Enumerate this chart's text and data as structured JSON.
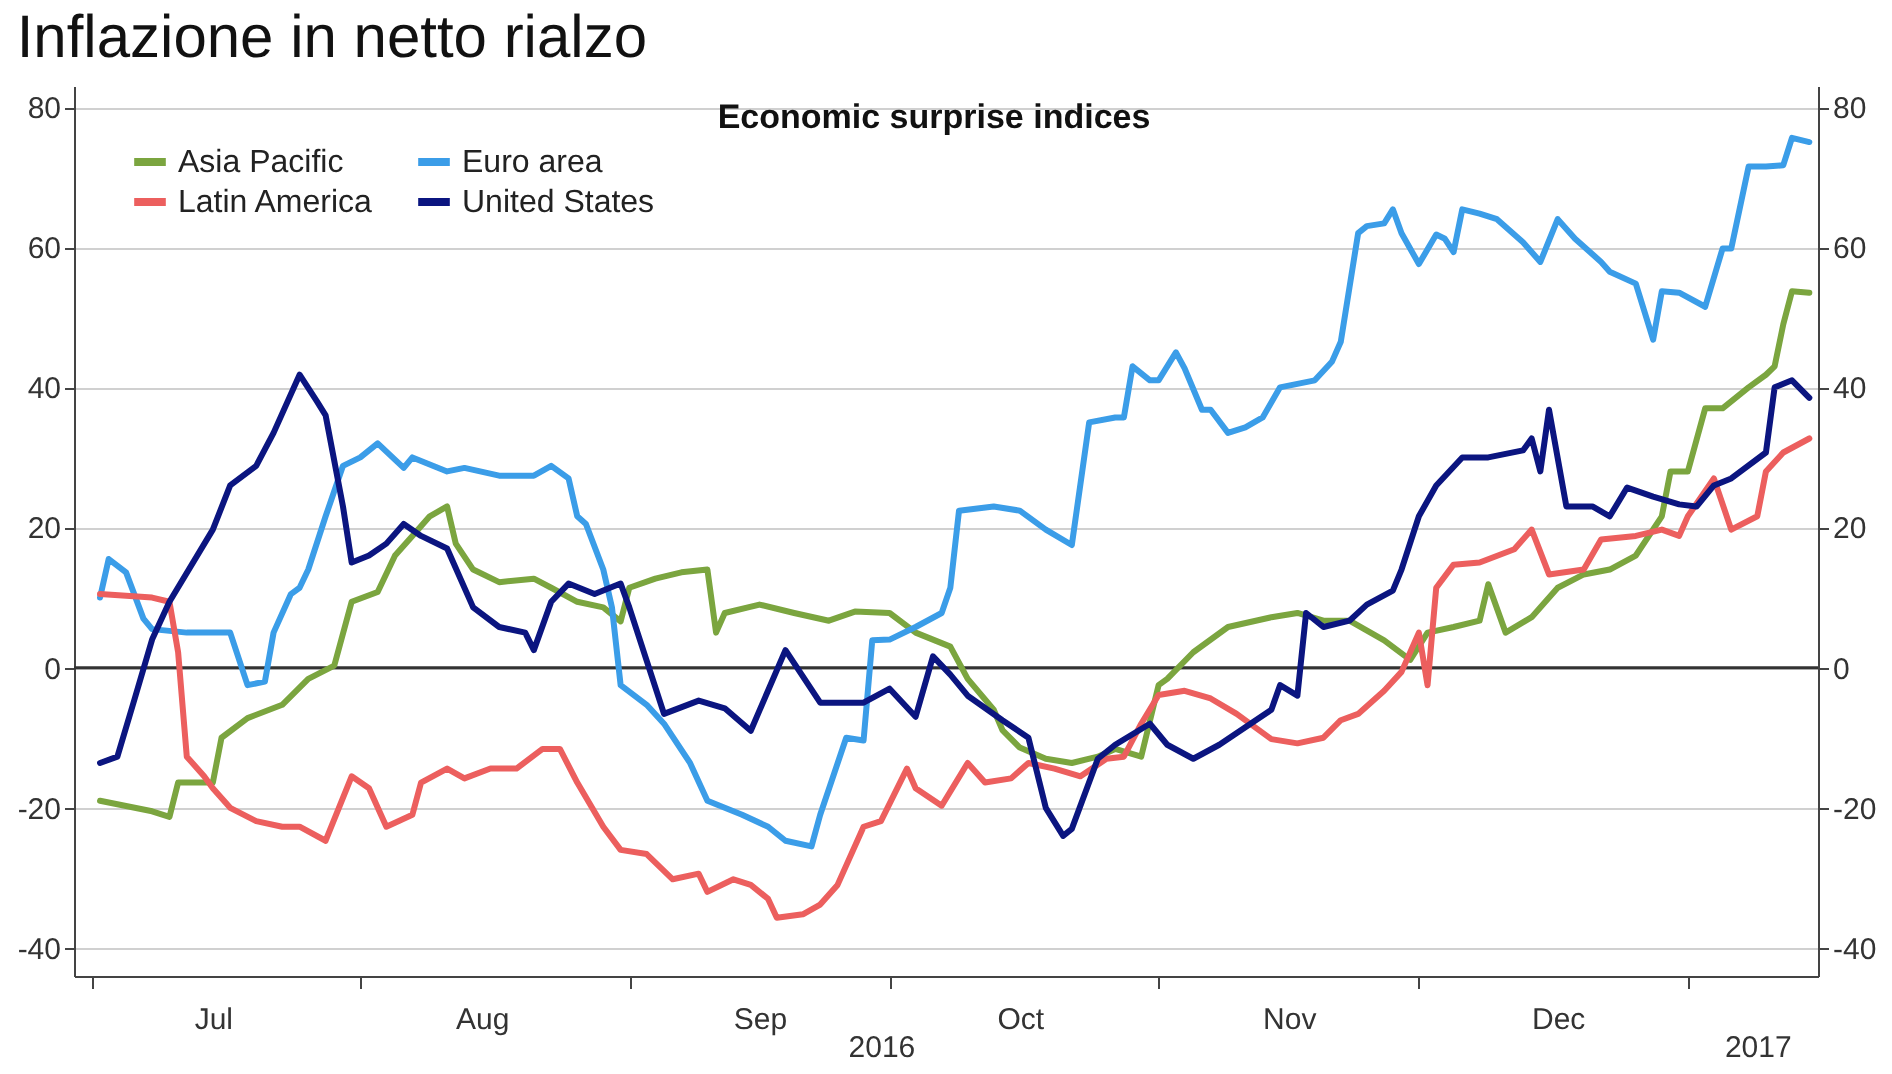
{
  "chart_data": {
    "type": "line",
    "title": "Inflazione in netto rialzo",
    "subtitle": "Economic surprise indices",
    "xlim": [
      "2016-06-29",
      "2017-01-16"
    ],
    "xticks": [
      {
        "value": "2016-07-01",
        "label": null
      },
      {
        "value": "2016-08-01",
        "label": null
      },
      {
        "value": "2016-09-01",
        "label": null
      },
      {
        "value": "2016-10-01",
        "label": null
      },
      {
        "value": "2016-11-01",
        "label": null
      },
      {
        "value": "2016-12-01",
        "label": null
      },
      {
        "value": "2017-01-01",
        "label": null
      },
      {
        "value": "2016-07-15",
        "label": "Jul"
      },
      {
        "value": "2016-08-15",
        "label": "Aug"
      },
      {
        "value": "2016-09-16",
        "label": "Sep"
      },
      {
        "value": "2016-10-16",
        "label": "Oct"
      },
      {
        "value": "2016-11-16",
        "label": "Nov"
      },
      {
        "value": "2016-12-17",
        "label": "Dec"
      }
    ],
    "x2lim": [
      "2016-06-29",
      "2017-01-16"
    ],
    "x2ticks": [
      {
        "value": "2016-09-30",
        "label": "2016"
      },
      {
        "value": "2017-01-09",
        "label": "2017"
      }
    ],
    "ylim": [
      -44,
      83
    ],
    "yticks": [
      -40,
      -20,
      0,
      20,
      40,
      60,
      80
    ],
    "y2lim": [
      -44,
      83
    ],
    "y2ticks": [
      -40,
      -20,
      0,
      20,
      40,
      60,
      80
    ],
    "grid": "y",
    "legend": "top left",
    "line_style": "solid",
    "marker": "none",
    "ref_lines": [
      {
        "axis": "y",
        "value": 0,
        "color": "#333333"
      }
    ],
    "series": [
      {
        "name": "Asia Pacific",
        "color": "#7ba53f",
        "x": [
          "2016-07-02",
          "2016-07-08",
          "2016-07-10",
          "2016-07-11",
          "2016-07-15",
          "2016-07-16",
          "2016-07-19",
          "2016-07-23",
          "2016-07-26",
          "2016-07-29",
          "2016-07-31",
          "2016-08-03",
          "2016-08-05",
          "2016-08-07",
          "2016-08-09",
          "2016-08-11",
          "2016-08-12",
          "2016-08-14",
          "2016-08-17",
          "2016-08-21",
          "2016-08-23",
          "2016-08-26",
          "2016-08-29",
          "2016-08-31",
          "2016-09-01",
          "2016-09-04",
          "2016-09-07",
          "2016-09-10",
          "2016-09-11",
          "2016-09-12",
          "2016-09-16",
          "2016-09-20",
          "2016-09-24",
          "2016-09-27",
          "2016-10-01",
          "2016-10-04",
          "2016-10-08",
          "2016-10-10",
          "2016-10-13",
          "2016-10-14",
          "2016-10-16",
          "2016-10-19",
          "2016-10-22",
          "2016-10-25",
          "2016-10-27",
          "2016-10-30",
          "2016-11-01",
          "2016-11-02",
          "2016-11-05",
          "2016-11-09",
          "2016-11-14",
          "2016-11-17",
          "2016-11-20",
          "2016-11-23",
          "2016-11-27",
          "2016-11-30",
          "2016-12-02",
          "2016-12-05",
          "2016-12-08",
          "2016-12-09",
          "2016-12-11",
          "2016-12-14",
          "2016-12-17",
          "2016-12-20",
          "2016-12-23",
          "2016-12-26",
          "2016-12-29",
          "2016-12-30",
          "2017-01-01",
          "2017-01-03",
          "2017-01-05",
          "2017-01-08",
          "2017-01-10",
          "2017-01-11",
          "2017-01-12",
          "2017-01-13",
          "2017-01-15"
        ],
        "values": [
          -19,
          -20.5,
          -21.3,
          -16.4,
          -16.4,
          -10,
          -7.2,
          -5.3,
          -1.6,
          0.3,
          9.4,
          10.8,
          16,
          18.8,
          21.6,
          23,
          17.7,
          14,
          12.2,
          12.7,
          11.4,
          9.4,
          8.6,
          6.6,
          11.4,
          12.7,
          13.6,
          14,
          5,
          7.8,
          9,
          7.8,
          6.7,
          8,
          7.8,
          5,
          3,
          -1.6,
          -6,
          -8.9,
          -11.4,
          -13,
          -13.6,
          -12.7,
          -11.6,
          -12.7,
          -2.5,
          -1.6,
          2.2,
          5.8,
          7.2,
          7.8,
          6.7,
          6.7,
          3.9,
          1.1,
          5,
          5.8,
          6.7,
          11.9,
          5,
          7.2,
          11.4,
          13.3,
          14,
          16,
          21.6,
          28,
          28,
          37,
          37,
          40,
          41.8,
          43,
          49,
          53.7,
          53.5
        ]
      },
      {
        "name": "Euro area",
        "color": "#3b9de8",
        "x": [
          "2016-07-02",
          "2016-07-03",
          "2016-07-05",
          "2016-07-07",
          "2016-07-08",
          "2016-07-12",
          "2016-07-17",
          "2016-07-19",
          "2016-07-21",
          "2016-07-22",
          "2016-07-24",
          "2016-07-25",
          "2016-07-26",
          "2016-07-28",
          "2016-07-30",
          "2016-08-01",
          "2016-08-03",
          "2016-08-06",
          "2016-08-07",
          "2016-08-11",
          "2016-08-13",
          "2016-08-17",
          "2016-08-21",
          "2016-08-23",
          "2016-08-25",
          "2016-08-26",
          "2016-08-27",
          "2016-08-29",
          "2016-08-30",
          "2016-08-31",
          "2016-09-03",
          "2016-09-05",
          "2016-09-08",
          "2016-09-10",
          "2016-09-14",
          "2016-09-17",
          "2016-09-19",
          "2016-09-22",
          "2016-09-23",
          "2016-09-26",
          "2016-09-28",
          "2016-09-29",
          "2016-10-01",
          "2016-10-04",
          "2016-10-07",
          "2016-10-08",
          "2016-10-09",
          "2016-10-13",
          "2016-10-16",
          "2016-10-19",
          "2016-10-22",
          "2016-10-24",
          "2016-10-27",
          "2016-10-28",
          "2016-10-29",
          "2016-10-31",
          "2016-11-01",
          "2016-11-03",
          "2016-11-04",
          "2016-11-06",
          "2016-11-07",
          "2016-11-09",
          "2016-11-11",
          "2016-11-13",
          "2016-11-15",
          "2016-11-19",
          "2016-11-21",
          "2016-11-22",
          "2016-11-24",
          "2016-11-25",
          "2016-11-27",
          "2016-11-28",
          "2016-11-29",
          "2016-12-01",
          "2016-12-03",
          "2016-12-04",
          "2016-12-05",
          "2016-12-06",
          "2016-12-08",
          "2016-12-10",
          "2016-12-13",
          "2016-12-15",
          "2016-12-17",
          "2016-12-19",
          "2016-12-22",
          "2016-12-23",
          "2016-12-26",
          "2016-12-28",
          "2016-12-29",
          "2016-12-31",
          "2017-01-03",
          "2017-01-05",
          "2017-01-06",
          "2017-01-08",
          "2017-01-10",
          "2017-01-12",
          "2017-01-13",
          "2017-01-15"
        ],
        "values": [
          10,
          15.5,
          13.6,
          7,
          5.5,
          5,
          5,
          -2.5,
          -2,
          5,
          10.5,
          11.4,
          14,
          21.6,
          28.8,
          30,
          32,
          28.5,
          30,
          28,
          28.5,
          27.4,
          27.4,
          28.8,
          27,
          21.6,
          20.5,
          14,
          8.6,
          -2.5,
          -5.3,
          -8,
          -13.6,
          -19,
          -21,
          -22.7,
          -24.7,
          -25.5,
          -21,
          -10,
          -10.4,
          3.9,
          4,
          5.8,
          7.8,
          11.4,
          22.4,
          23,
          22.4,
          19.7,
          17.5,
          35,
          35.7,
          35.7,
          43,
          41,
          41,
          45,
          42.7,
          36.8,
          36.8,
          33.5,
          34.3,
          35.7,
          40,
          41,
          43.7,
          46.5,
          62,
          63,
          63.4,
          65.4,
          62,
          57.6,
          61.8,
          61.2,
          59.3,
          65.4,
          64.8,
          64,
          60.7,
          57.9,
          64,
          61.2,
          57.9,
          56.5,
          54.8,
          46.8,
          53.7,
          53.5,
          51.5,
          59.8,
          59.8,
          71.5,
          71.5,
          71.7,
          75.6,
          75
        ]
      },
      {
        "name": "Latin America",
        "color": "#ec5f5e",
        "x": [
          "2016-07-02",
          "2016-07-08",
          "2016-07-10",
          "2016-07-11",
          "2016-07-12",
          "2016-07-14",
          "2016-07-15",
          "2016-07-17",
          "2016-07-20",
          "2016-07-23",
          "2016-07-25",
          "2016-07-28",
          "2016-07-31",
          "2016-08-02",
          "2016-08-04",
          "2016-08-07",
          "2016-08-08",
          "2016-08-11",
          "2016-08-13",
          "2016-08-16",
          "2016-08-19",
          "2016-08-22",
          "2016-08-24",
          "2016-08-26",
          "2016-08-29",
          "2016-08-31",
          "2016-09-03",
          "2016-09-06",
          "2016-09-09",
          "2016-09-10",
          "2016-09-13",
          "2016-09-15",
          "2016-09-17",
          "2016-09-18",
          "2016-09-21",
          "2016-09-23",
          "2016-09-25",
          "2016-09-28",
          "2016-09-30",
          "2016-10-03",
          "2016-10-04",
          "2016-10-07",
          "2016-10-10",
          "2016-10-12",
          "2016-10-15",
          "2016-10-17",
          "2016-10-20",
          "2016-10-23",
          "2016-10-26",
          "2016-10-28",
          "2016-10-30",
          "2016-11-01",
          "2016-11-04",
          "2016-11-07",
          "2016-11-10",
          "2016-11-14",
          "2016-11-17",
          "2016-11-20",
          "2016-11-22",
          "2016-11-24",
          "2016-11-27",
          "2016-11-29",
          "2016-12-01",
          "2016-12-02",
          "2016-12-03",
          "2016-12-05",
          "2016-12-08",
          "2016-12-12",
          "2016-12-14",
          "2016-12-16",
          "2016-12-20",
          "2016-12-22",
          "2016-12-26",
          "2016-12-29",
          "2016-12-31",
          "2017-01-01",
          "2017-01-04",
          "2017-01-06",
          "2017-01-09",
          "2017-01-10",
          "2017-01-12",
          "2017-01-15"
        ],
        "values": [
          10.5,
          10,
          9.4,
          2.2,
          -12.7,
          -15.5,
          -17.2,
          -20,
          -21.9,
          -22.7,
          -22.7,
          -24.7,
          -15.5,
          -17.2,
          -22.7,
          -21,
          -16.4,
          -14.4,
          -15.8,
          -14.4,
          -14.4,
          -11.6,
          -11.6,
          -16.4,
          -22.7,
          -26,
          -26.6,
          -30.2,
          -29.4,
          -32,
          -30.2,
          -31,
          -33,
          -35.7,
          -35.2,
          -33.8,
          -31,
          -22.7,
          -21.9,
          -14.4,
          -17.2,
          -19.7,
          -13.6,
          -16.4,
          -15.8,
          -13.6,
          -14.4,
          -15.5,
          -13,
          -12.7,
          -8,
          -3.9,
          -3.3,
          -4.4,
          -6.6,
          -10.2,
          -10.8,
          -10,
          -7.5,
          -6.6,
          -3.3,
          -0.6,
          5,
          -2.5,
          11.4,
          14.7,
          15,
          16.9,
          19.7,
          13.3,
          14,
          18.3,
          18.8,
          19.7,
          18.8,
          21.6,
          27,
          19.7,
          21.6,
          28,
          30.7,
          32.7
        ]
      },
      {
        "name": "United States",
        "color": "#0b1580",
        "x": [
          "2016-07-02",
          "2016-07-04",
          "2016-07-06",
          "2016-07-08",
          "2016-07-10",
          "2016-07-15",
          "2016-07-17",
          "2016-07-20",
          "2016-07-22",
          "2016-07-25",
          "2016-07-27",
          "2016-07-28",
          "2016-07-30",
          "2016-07-31",
          "2016-08-02",
          "2016-08-04",
          "2016-08-06",
          "2016-08-08",
          "2016-08-11",
          "2016-08-14",
          "2016-08-17",
          "2016-08-20",
          "2016-08-21",
          "2016-08-23",
          "2016-08-25",
          "2016-08-28",
          "2016-08-31",
          "2016-09-01",
          "2016-09-03",
          "2016-09-05",
          "2016-09-09",
          "2016-09-12",
          "2016-09-15",
          "2016-09-19",
          "2016-09-23",
          "2016-09-28",
          "2016-10-01",
          "2016-10-04",
          "2016-10-06",
          "2016-10-08",
          "2016-10-10",
          "2016-10-14",
          "2016-10-17",
          "2016-10-19",
          "2016-10-21",
          "2016-10-22",
          "2016-10-25",
          "2016-10-27",
          "2016-10-31",
          "2016-11-02",
          "2016-11-05",
          "2016-11-08",
          "2016-11-11",
          "2016-11-14",
          "2016-11-15",
          "2016-11-17",
          "2016-11-18",
          "2016-11-20",
          "2016-11-23",
          "2016-11-25",
          "2016-11-28",
          "2016-11-29",
          "2016-12-01",
          "2016-12-03",
          "2016-12-06",
          "2016-12-09",
          "2016-12-13",
          "2016-12-14",
          "2016-12-15",
          "2016-12-16",
          "2016-12-18",
          "2016-12-21",
          "2016-12-23",
          "2016-12-25",
          "2016-12-28",
          "2016-12-31",
          "2017-01-02",
          "2017-01-04",
          "2017-01-06",
          "2017-01-10",
          "2017-01-11",
          "2017-01-13",
          "2017-01-15"
        ],
        "values": [
          -13.6,
          -12.7,
          -4.4,
          4,
          9.4,
          19.7,
          26,
          28.8,
          33.5,
          41.8,
          38,
          36,
          23,
          15,
          16,
          17.7,
          20.5,
          18.8,
          17,
          8.6,
          5.8,
          5,
          2.5,
          9.4,
          12,
          10.5,
          12,
          8.6,
          1,
          -6.6,
          -4.7,
          -5.8,
          -9,
          2.5,
          -5,
          -5,
          -3,
          -7,
          1.6,
          -1,
          -4,
          -7.5,
          -10,
          -20,
          -24,
          -23,
          -13,
          -11,
          -8,
          -11,
          -13,
          -11,
          -8.5,
          -6,
          -2.5,
          -4,
          7.8,
          5.8,
          6.7,
          9,
          11,
          14,
          21.6,
          26,
          30,
          30,
          31,
          32.7,
          28,
          36.8,
          23,
          23,
          21.6,
          25.7,
          24.4,
          23.3,
          23,
          26,
          27,
          30.7,
          40,
          41,
          38.5
        ]
      }
    ]
  }
}
